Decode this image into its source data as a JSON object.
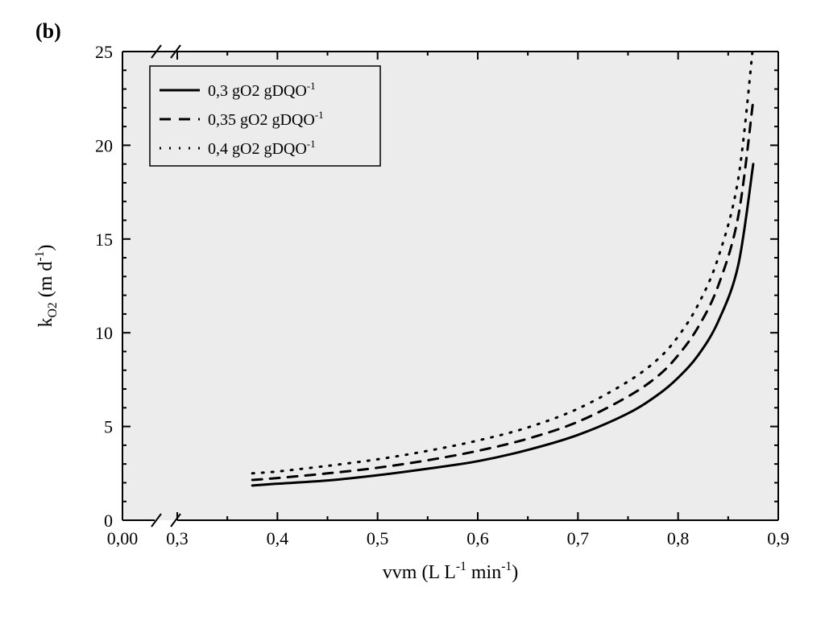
{
  "panel_label": "(b)",
  "background_color": "#ffffff",
  "chart": {
    "type": "line",
    "plot_background": "#ececec",
    "axis_color": "#000000",
    "tick_color": "#000000",
    "text_color": "#000000",
    "font_family": "Times New Roman",
    "axis_line_width": 2,
    "tick_len_major": 10,
    "tick_len_minor": 5,
    "x": {
      "label_prefix": "vvm (L L",
      "label_sup": "-1",
      "label_mid": " min",
      "label_sup2": "-1",
      "label_suffix": ")",
      "label_fontsize": 24,
      "tick_fontsize": 22,
      "ticks_major": [
        0.0,
        0.3,
        0.4,
        0.5,
        0.6,
        0.7,
        0.8,
        0.9
      ],
      "tick_labels": [
        "0,00",
        "0,3",
        "0,4",
        "0,5",
        "0,6",
        "0,7",
        "0,8",
        "0,9"
      ],
      "minor_step": 0.05,
      "broken_axis": {
        "after": 0.0,
        "before": 0.3
      }
    },
    "y": {
      "label_prefix": "k",
      "label_sub": "O2",
      "label_mid": " (m d",
      "label_sup": "-1",
      "label_suffix": ")",
      "label_fontsize": 24,
      "tick_fontsize": 22,
      "ticks_major": [
        0,
        5,
        10,
        15,
        20,
        25
      ],
      "minor_step": 1
    },
    "legend": {
      "border_color": "#000000",
      "border_width": 1.5,
      "bg": "#ececec",
      "fontsize": 20,
      "items": [
        {
          "sample": "solid",
          "text_prefix": "0,3 gO2 gDQO",
          "text_sup": "-1"
        },
        {
          "sample": "dashed",
          "text_prefix": "0,35 gO2 gDQO",
          "text_sup": "-1"
        },
        {
          "sample": "dotted",
          "text_prefix": "0,4 gO2 gDQO",
          "text_sup": "-1"
        }
      ]
    },
    "series": [
      {
        "name": "0.3",
        "color": "#000000",
        "width": 3,
        "dash": "none",
        "points": [
          [
            0.375,
            1.85
          ],
          [
            0.4,
            1.95
          ],
          [
            0.45,
            2.12
          ],
          [
            0.5,
            2.4
          ],
          [
            0.55,
            2.75
          ],
          [
            0.6,
            3.15
          ],
          [
            0.65,
            3.75
          ],
          [
            0.7,
            4.55
          ],
          [
            0.75,
            5.7
          ],
          [
            0.78,
            6.7
          ],
          [
            0.8,
            7.6
          ],
          [
            0.82,
            8.8
          ],
          [
            0.84,
            10.6
          ],
          [
            0.86,
            13.6
          ],
          [
            0.875,
            19.0
          ]
        ]
      },
      {
        "name": "0.35",
        "color": "#000000",
        "width": 3,
        "dash": "12,10",
        "points": [
          [
            0.375,
            2.15
          ],
          [
            0.4,
            2.25
          ],
          [
            0.45,
            2.5
          ],
          [
            0.5,
            2.8
          ],
          [
            0.55,
            3.2
          ],
          [
            0.6,
            3.7
          ],
          [
            0.65,
            4.35
          ],
          [
            0.7,
            5.25
          ],
          [
            0.75,
            6.6
          ],
          [
            0.78,
            7.7
          ],
          [
            0.8,
            8.8
          ],
          [
            0.82,
            10.3
          ],
          [
            0.84,
            12.5
          ],
          [
            0.86,
            16.2
          ],
          [
            0.875,
            22.4
          ]
        ]
      },
      {
        "name": "0.4",
        "color": "#000000",
        "width": 3,
        "dash": "2,10",
        "points": [
          [
            0.375,
            2.5
          ],
          [
            0.4,
            2.6
          ],
          [
            0.45,
            2.9
          ],
          [
            0.5,
            3.25
          ],
          [
            0.55,
            3.7
          ],
          [
            0.6,
            4.25
          ],
          [
            0.65,
            4.95
          ],
          [
            0.7,
            5.95
          ],
          [
            0.75,
            7.4
          ],
          [
            0.78,
            8.6
          ],
          [
            0.8,
            9.8
          ],
          [
            0.82,
            11.5
          ],
          [
            0.84,
            14.0
          ],
          [
            0.86,
            18.2
          ],
          [
            0.875,
            25.4
          ]
        ]
      }
    ]
  }
}
